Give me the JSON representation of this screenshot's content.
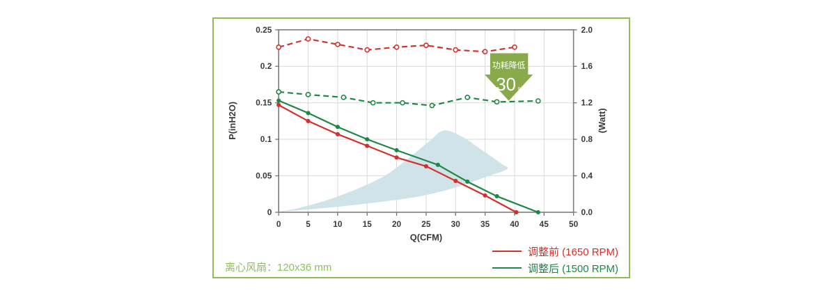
{
  "panel": {
    "border_color": "#90be55",
    "caption": "离心风扇：120x36 mm",
    "caption_color": "#8dc05e"
  },
  "badge": {
    "line1": "功耗降低",
    "value": "30",
    "unit": "%",
    "color": "#88aa4b",
    "text_color": "#ffffff"
  },
  "legend": [
    {
      "label": "调整前 (1650 RPM)",
      "color": "#d2302c"
    },
    {
      "label": "调整后 (1500 RPM)",
      "color": "#1e8745"
    }
  ],
  "chart_data": {
    "type": "line",
    "xlabel": "Q(CFM)",
    "ylabel_left": "P(inH2O)",
    "ylabel_right": "(Watt)",
    "xlim": [
      0,
      50
    ],
    "ylim_left": [
      0,
      0.25
    ],
    "ylim_right": [
      0,
      2.0
    ],
    "grid": true,
    "grid_color": "#d9d9d9",
    "axis_color": "#7a7a7a",
    "x_ticks": [
      0,
      5,
      10,
      15,
      20,
      25,
      30,
      35,
      40,
      45,
      50
    ],
    "y_left_ticks": [
      {
        "v": 0,
        "label": "0"
      },
      {
        "v": 0.05,
        "label": "0.05"
      },
      {
        "v": 0.1,
        "label": "0.1"
      },
      {
        "v": 0.15,
        "label": "0.15"
      },
      {
        "v": 0.2,
        "label": "0.2"
      },
      {
        "v": 0.25,
        "label": "0.25"
      }
    ],
    "y_right_ticks": [
      {
        "v": 0,
        "label": "0.0"
      },
      {
        "v": 0.4,
        "label": "0.4"
      },
      {
        "v": 0.8,
        "label": "0.8"
      },
      {
        "v": 1.2,
        "label": "1.2"
      },
      {
        "v": 1.6,
        "label": "1.6"
      },
      {
        "v": 2.0,
        "label": "2.0"
      }
    ],
    "series": [
      {
        "name": "调整前 (1650 RPM) P-Q curve",
        "axis": "left",
        "style": "solid",
        "marker": "filled",
        "color": "#d2302c",
        "points": [
          [
            0,
            0.147
          ],
          [
            5,
            0.125
          ],
          [
            10,
            0.107
          ],
          [
            15,
            0.091
          ],
          [
            20,
            0.075
          ],
          [
            25,
            0.063
          ],
          [
            30,
            0.043
          ],
          [
            35,
            0.023
          ],
          [
            40.3,
            0
          ]
        ]
      },
      {
        "name": "调整后 (1500 RPM) P-Q curve",
        "axis": "left",
        "style": "solid",
        "marker": "filled",
        "color": "#1e8745",
        "points": [
          [
            0,
            0.153
          ],
          [
            5,
            0.136
          ],
          [
            10,
            0.117
          ],
          [
            15,
            0.1
          ],
          [
            20,
            0.085
          ],
          [
            27,
            0.065
          ],
          [
            32,
            0.042
          ],
          [
            37,
            0.022
          ],
          [
            44,
            0
          ]
        ]
      },
      {
        "name": "调整前 (1650 RPM) power",
        "axis": "right",
        "style": "dashed",
        "marker": "open",
        "color": "#d2302c",
        "points": [
          [
            0,
            1.81
          ],
          [
            5,
            1.9
          ],
          [
            10,
            1.84
          ],
          [
            15,
            1.78
          ],
          [
            20,
            1.81
          ],
          [
            25,
            1.83
          ],
          [
            30,
            1.78
          ],
          [
            35,
            1.76
          ],
          [
            40,
            1.81
          ]
        ]
      },
      {
        "name": "调整后 (1500 RPM) power",
        "axis": "right",
        "style": "dashed",
        "marker": "open",
        "color": "#1e8745",
        "points": [
          [
            0,
            1.32
          ],
          [
            5,
            1.29
          ],
          [
            11,
            1.26
          ],
          [
            16,
            1.2
          ],
          [
            21,
            1.2
          ],
          [
            26,
            1.17
          ],
          [
            32,
            1.26
          ],
          [
            37,
            1.21
          ],
          [
            44,
            1.22
          ]
        ]
      }
    ],
    "operating_region": {
      "color": "#cfe3e8",
      "axis": "left",
      "points": [
        [
          0.4,
          0.001
        ],
        [
          8,
          0.006
        ],
        [
          16,
          0.013
        ],
        [
          24,
          0.022
        ],
        [
          30,
          0.034
        ],
        [
          35,
          0.048
        ],
        [
          38.7,
          0.059
        ],
        [
          37.7,
          0.067
        ],
        [
          34.5,
          0.085
        ],
        [
          31,
          0.104
        ],
        [
          28,
          0.112
        ],
        [
          25.5,
          0.097
        ],
        [
          22,
          0.074
        ],
        [
          18,
          0.05
        ],
        [
          13,
          0.031
        ],
        [
          8,
          0.016
        ],
        [
          3,
          0.005
        ]
      ]
    }
  }
}
